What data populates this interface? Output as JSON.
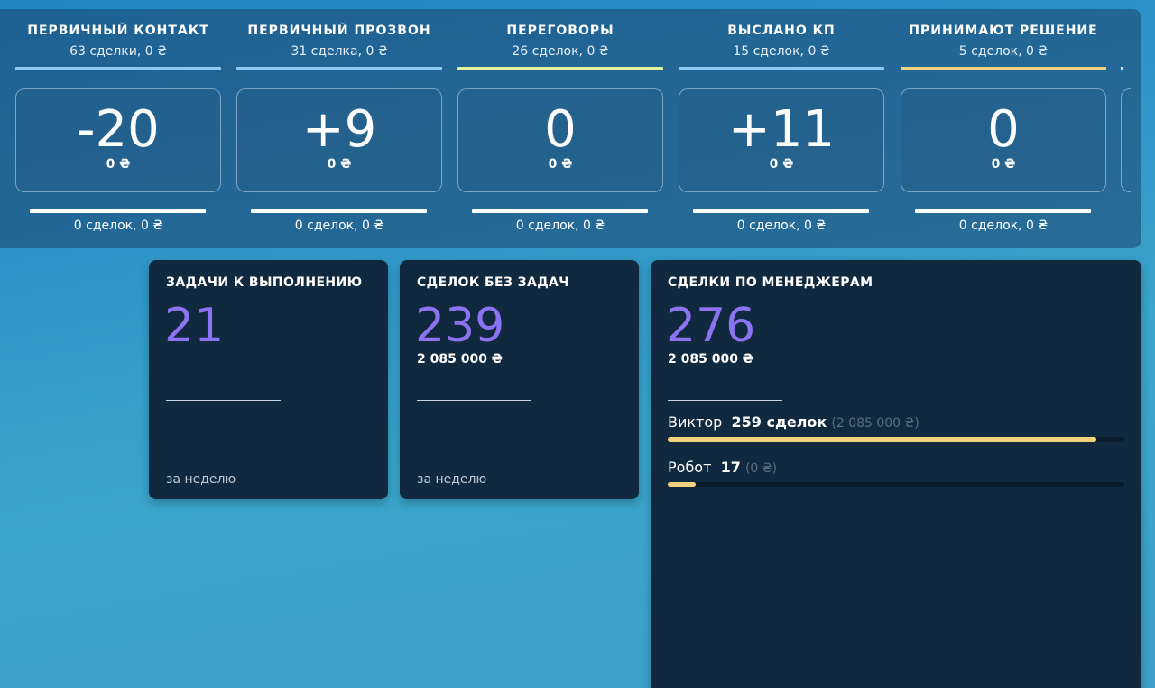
{
  "pipeline": {
    "stages": [
      {
        "title": "ПЕРВИЧНЫЙ КОНТАКТ",
        "subtitle": "63 сделки, 0 ₴",
        "line_color": "#8fcaf0",
        "change": "-20",
        "amount": "0 ₴",
        "footer": "0 сделок, 0 ₴"
      },
      {
        "title": "ПЕРВИЧНЫЙ ПРОЗВОН",
        "subtitle": "31 сделка, 0 ₴",
        "line_color": "#8fcaf0",
        "change": "+9",
        "amount": "0 ₴",
        "footer": "0 сделок, 0 ₴"
      },
      {
        "title": "ПЕРЕГОВОРЫ",
        "subtitle": "26 сделок, 0 ₴",
        "line_color": "#e3f19a",
        "change": "0",
        "amount": "0 ₴",
        "footer": "0 сделок, 0 ₴"
      },
      {
        "title": "ВЫСЛАНО КП",
        "subtitle": "15 сделок, 0 ₴",
        "line_color": "#8fcaf0",
        "change": "+11",
        "amount": "0 ₴",
        "footer": "0 сделок, 0 ₴"
      },
      {
        "title": "ПРИНИМАЮТ РЕШЕНИЕ",
        "subtitle": "5 сделок, 0 ₴",
        "line_color": "#f2d27a",
        "change": "0",
        "amount": "0 ₴",
        "footer": "0 сделок, 0 ₴"
      }
    ]
  },
  "tasks_card": {
    "title": "ЗАДАЧИ К ВЫПОЛНЕНИЮ",
    "value": "21",
    "footer": "за неделю"
  },
  "no_tasks_card": {
    "title": "СДЕЛОК БЕЗ ЗАДАЧ",
    "value": "239",
    "amount": "2 085 000 ₴",
    "footer": "за неделю"
  },
  "managers_card": {
    "title": "СДЕЛКИ ПО МЕНЕДЖЕРАМ",
    "value": "276",
    "amount": "2 085 000 ₴",
    "managers": [
      {
        "name": "Виктор",
        "deals": "259 сделок",
        "amount": "(2 085 000 ₴)",
        "share": 0.938
      },
      {
        "name": "Робот",
        "deals": "17",
        "amount": "(0 ₴)",
        "share": 0.062
      }
    ]
  },
  "colors": {
    "accent_number": "#8c73f2",
    "bar_fill": "#f2d27a",
    "card_bg": "#11293f"
  }
}
